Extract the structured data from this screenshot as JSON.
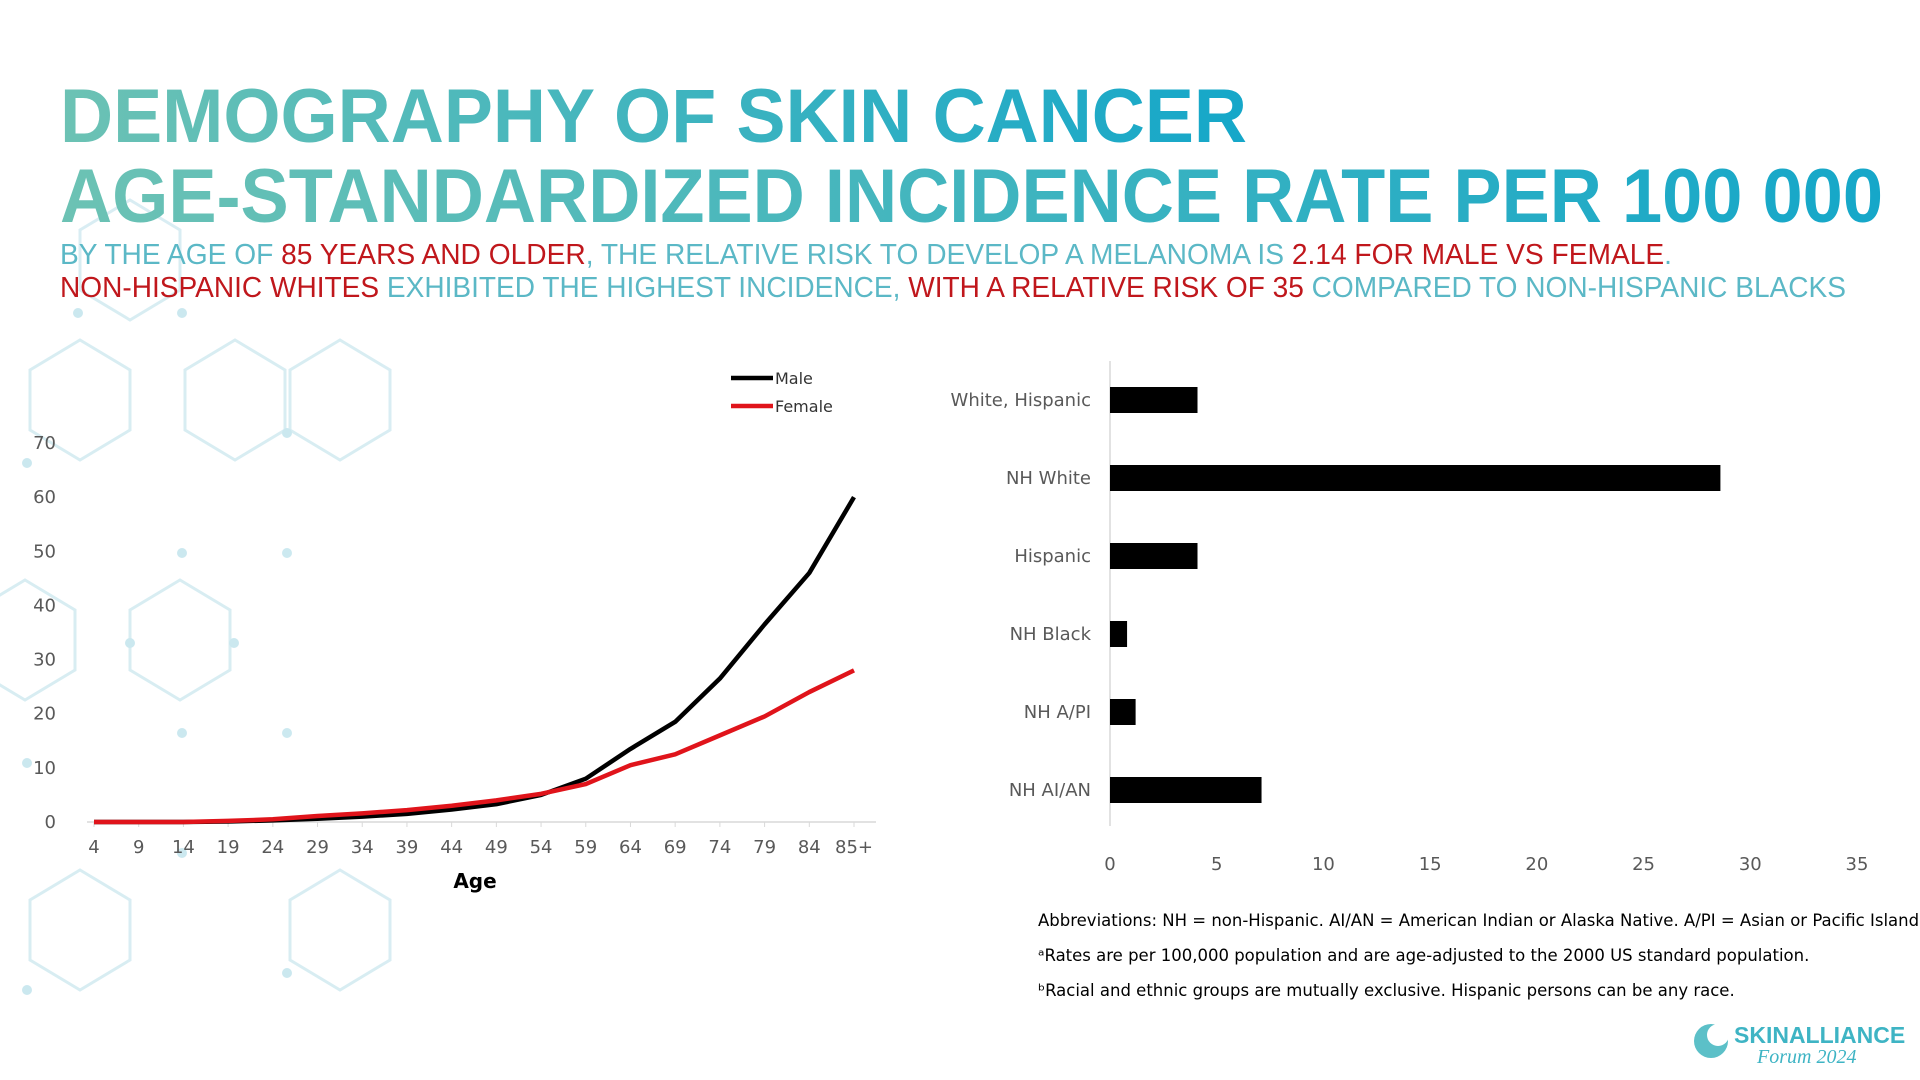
{
  "slide": {
    "title_lines": [
      "DEMOGRAPHY OF SKIN CANCER",
      "AGE-STANDARDIZED INCIDENCE RATE PER 100 000"
    ],
    "subtitle_lines": [
      [
        {
          "text": "BY THE AGE OF ",
          "color": "#5bb8c6"
        },
        {
          "text": "85 YEARS AND OLDER",
          "color": "#c0171c"
        },
        {
          "text": ", THE RELATIVE RISK TO DEVELOP A MELANOMA IS ",
          "color": "#5bb8c6"
        },
        {
          "text": "2.14 FOR MALE VS FEMALE",
          "color": "#c0171c"
        },
        {
          "text": ".",
          "color": "#5bb8c6"
        }
      ],
      [
        {
          "text": "NON-HISPANIC WHITES",
          "color": "#c0171c"
        },
        {
          "text": " EXHIBITED THE HIGHEST INCIDENCE, ",
          "color": "#5bb8c6"
        },
        {
          "text": "WITH A RELATIVE RISK OF 35",
          "color": "#c0171c"
        },
        {
          "text": " COMPARED TO NON-HISPANIC BLACKS",
          "color": "#5bb8c6"
        }
      ]
    ],
    "footnotes": [
      "Abbreviations: NH = non-Hispanic. AI/AN = American Indian or Alaska Native. A/PI = Asian or Pacific Islander.",
      "ᵃRates are per 100,000 population and are age-adjusted to the 2000 US standard population.",
      "ᵇRacial and ethnic groups are mutually exclusive. Hispanic persons can be any race."
    ],
    "logo": {
      "name": "SKINALLIANCE",
      "event": "Forum 2024"
    }
  },
  "chart_data": [
    {
      "type": "line",
      "x_label": "Age",
      "categories": [
        "4",
        "9",
        "14",
        "19",
        "24",
        "29",
        "34",
        "39",
        "44",
        "49",
        "54",
        "59",
        "64",
        "69",
        "74",
        "79",
        "84",
        "85+"
      ],
      "series": [
        {
          "name": "Male",
          "color": "#000000",
          "values": [
            0,
            0,
            0,
            0.1,
            0.3,
            0.6,
            1,
            1.5,
            2.3,
            3.3,
            5,
            8,
            13.5,
            18.5,
            26.5,
            36.5,
            46,
            60
          ]
        },
        {
          "name": "Female",
          "color": "#e0141b",
          "values": [
            0,
            0,
            0,
            0.2,
            0.5,
            1.1,
            1.6,
            2.2,
            3,
            4,
            5.2,
            7,
            10.5,
            12.5,
            16,
            19.5,
            24,
            28
          ]
        }
      ],
      "ylim": [
        0,
        70
      ],
      "yticks": [
        0,
        10,
        20,
        30,
        40,
        50,
        60,
        70
      ],
      "grid": false,
      "legend": "top-right"
    },
    {
      "type": "bar",
      "orientation": "horizontal",
      "categories": [
        "White, Hispanic",
        "NH White",
        "Hispanic",
        "NH Black",
        "NH A/PI",
        "NH AI/AN"
      ],
      "values": [
        4.1,
        28.6,
        4.1,
        0.8,
        1.2,
        7.1
      ],
      "color": "#000000",
      "xlim": [
        0,
        35
      ],
      "xticks": [
        0,
        5,
        10,
        15,
        20,
        25,
        30,
        35
      ],
      "grid": false
    }
  ]
}
